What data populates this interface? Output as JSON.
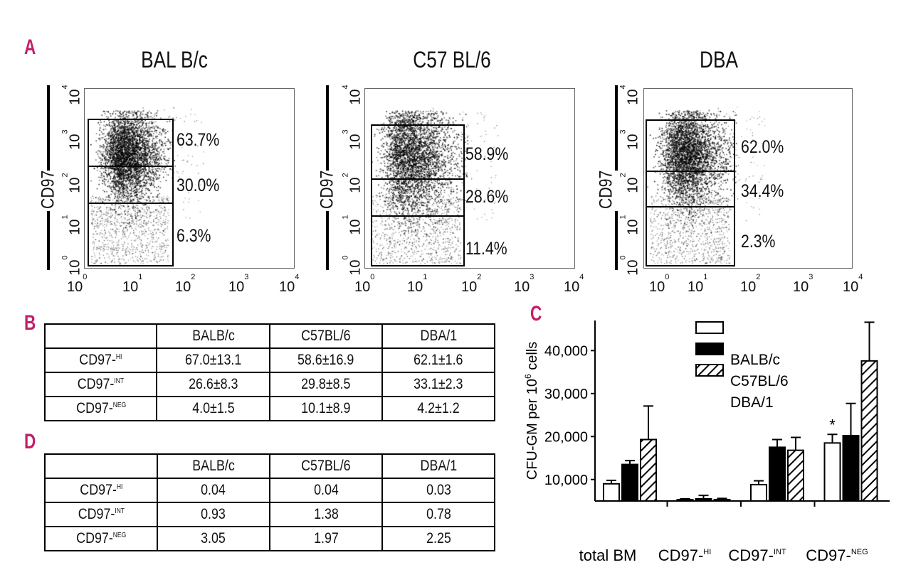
{
  "panels": {
    "a": "A",
    "b": "B",
    "c": "C",
    "d": "D"
  },
  "flow": {
    "ylabel": "CD97",
    "tick_base": "10",
    "tick_exps": [
      "0",
      "1",
      "2",
      "3",
      "4"
    ],
    "plots": [
      {
        "title": "BAL B/c",
        "hi": "63.7%",
        "int": "30.0%",
        "neg": "6.3%"
      },
      {
        "title": "C57 BL/6",
        "hi": "58.9%",
        "int": "28.6%",
        "neg": "11.4%"
      },
      {
        "title": "DBA",
        "hi": "62.0%",
        "int": "34.4%",
        "neg": "2.3%"
      }
    ]
  },
  "table_b": {
    "headers": [
      "",
      "BALB/c",
      "C57BL/6",
      "DBA/1"
    ],
    "rows": [
      {
        "label": "CD97-",
        "sup": "HI",
        "v1": "67.0±13.1",
        "v2": "58.6±16.9",
        "v3": "62.1±1.6"
      },
      {
        "label": "CD97-",
        "sup": "INT",
        "v1": "26.6±8.3",
        "v2": "29.8±8.5",
        "v3": "33.1±2.3"
      },
      {
        "label": "CD97-",
        "sup": "NEG",
        "v1": "4.0±1.5",
        "v2": "10.1±8.9",
        "v3": "4.2±1.2"
      }
    ]
  },
  "table_d": {
    "headers": [
      "",
      "BALB/c",
      "C57BL/6",
      "DBA/1"
    ],
    "rows": [
      {
        "label": "CD97-",
        "sup": "HI",
        "v1": "0.04",
        "v2": "0.04",
        "v3": "0.03"
      },
      {
        "label": "CD97-",
        "sup": "INT",
        "v1": "0.93",
        "v2": "1.38",
        "v3": "0.78"
      },
      {
        "label": "CD97-",
        "sup": "NEG",
        "v1": "3.05",
        "v2": "1.97",
        "v3": "2.25"
      }
    ]
  },
  "chart_data": {
    "type": "bar",
    "ylabel_main": "CFU-GM per 10",
    "ylabel_sup": "6",
    "ylabel_tail": " cells",
    "ylim": [
      5000,
      47000
    ],
    "yticks": [
      "10,000",
      "20,000",
      "30,000",
      "40,000"
    ],
    "ytick_values": [
      10000,
      20000,
      30000,
      40000
    ],
    "categories": [
      "total BM",
      "CD97-HI",
      "CD97-INT",
      "CD97-NEG"
    ],
    "category_labels": [
      {
        "main": "total BM",
        "sup": ""
      },
      {
        "main": "CD97-",
        "sup": "HI"
      },
      {
        "main": "CD97-",
        "sup": "INT"
      },
      {
        "main": "CD97-",
        "sup": "NEG"
      }
    ],
    "series": [
      {
        "name": "BALB/c",
        "fill": "white",
        "values": [
          9000,
          5200,
          8800,
          18500
        ],
        "errors": [
          800,
          300,
          900,
          2000
        ]
      },
      {
        "name": "C57BL/6",
        "fill": "black",
        "values": [
          13500,
          5500,
          17500,
          20200
        ],
        "errors": [
          900,
          800,
          1800,
          7500
        ]
      },
      {
        "name": "DBA/1",
        "fill": "hatched",
        "values": [
          19300,
          5300,
          16800,
          37600
        ],
        "errors": [
          7800,
          300,
          3000,
          9000
        ]
      }
    ],
    "legend": [
      "BALB/c",
      "C57BL/6",
      "DBA/1"
    ],
    "annotation": "*"
  }
}
